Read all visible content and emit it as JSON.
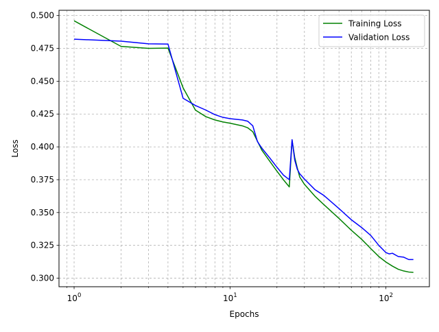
{
  "chart_data": {
    "type": "line",
    "title": "",
    "xlabel": "Epochs",
    "ylabel": "Loss",
    "xscale": "log",
    "xlim": [
      0.8,
      190
    ],
    "ylim": [
      0.2935,
      0.504
    ],
    "grid": {
      "major": true,
      "minor_x": true,
      "style": "dashed",
      "color": "#b0b0b0"
    },
    "legend_position": "upper right",
    "x_ticks": [
      {
        "value": 1,
        "base": "10",
        "exp": "0"
      },
      {
        "value": 10,
        "base": "10",
        "exp": "1"
      },
      {
        "value": 100,
        "base": "10",
        "exp": "2"
      }
    ],
    "y_ticks": [
      0.3,
      0.325,
      0.35,
      0.375,
      0.4,
      0.425,
      0.45,
      0.475,
      0.5
    ],
    "y_tick_labels": [
      "0.300",
      "0.325",
      "0.350",
      "0.375",
      "0.400",
      "0.425",
      "0.450",
      "0.475",
      "0.500"
    ],
    "series": [
      {
        "name": "Training Loss",
        "color": "#008000",
        "x": [
          1,
          2,
          3,
          4,
          5,
          6,
          7,
          8,
          9,
          10,
          12,
          13,
          14,
          16,
          18,
          20,
          22,
          24,
          25,
          26,
          27,
          28,
          30,
          35,
          40,
          50,
          60,
          70,
          80,
          90,
          100,
          110,
          120,
          130,
          140,
          150
        ],
        "y": [
          0.496,
          0.4765,
          0.475,
          0.4752,
          0.445,
          0.428,
          0.423,
          0.4205,
          0.419,
          0.418,
          0.416,
          0.4145,
          0.4115,
          0.3975,
          0.389,
          0.3815,
          0.375,
          0.3695,
          0.405,
          0.392,
          0.384,
          0.377,
          0.3715,
          0.3625,
          0.356,
          0.3455,
          0.3365,
          0.3295,
          0.3225,
          0.3165,
          0.3123,
          0.3092,
          0.3068,
          0.3055,
          0.3047,
          0.3044
        ]
      },
      {
        "name": "Validation Loss",
        "color": "#0000ff",
        "x": [
          1,
          2,
          3,
          4,
          5,
          6,
          7,
          8,
          9,
          10,
          12,
          13,
          14,
          15,
          16,
          18,
          20,
          22,
          24,
          25,
          26,
          27,
          28,
          30,
          35,
          40,
          50,
          60,
          70,
          80,
          90,
          100,
          105,
          110,
          120,
          130,
          140,
          150
        ],
        "y": [
          0.482,
          0.4805,
          0.4785,
          0.4783,
          0.437,
          0.4315,
          0.428,
          0.4245,
          0.4225,
          0.4215,
          0.4205,
          0.4195,
          0.416,
          0.404,
          0.399,
          0.3915,
          0.3845,
          0.3785,
          0.375,
          0.4055,
          0.39,
          0.383,
          0.3795,
          0.3755,
          0.3675,
          0.363,
          0.353,
          0.3445,
          0.3385,
          0.3325,
          0.325,
          0.3195,
          0.3185,
          0.319,
          0.3165,
          0.316,
          0.3142,
          0.3142
        ]
      }
    ]
  }
}
